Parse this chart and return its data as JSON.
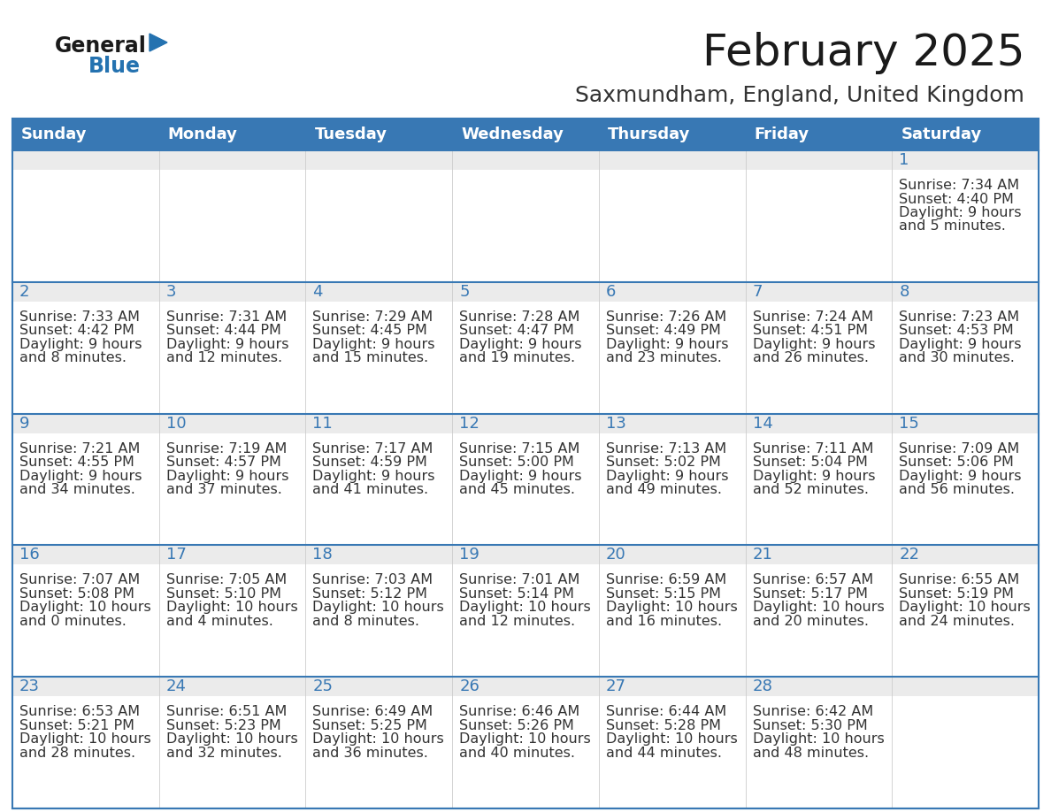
{
  "title": "February 2025",
  "subtitle": "Saxmundham, England, United Kingdom",
  "header_bg": "#3878b4",
  "header_text_color": "#ffffff",
  "cell_bg": "#ffffff",
  "row_top_bg": "#eeeeee",
  "border_color": "#3878b4",
  "sep_color": "#3878b4",
  "days_of_week": [
    "Sunday",
    "Monday",
    "Tuesday",
    "Wednesday",
    "Thursday",
    "Friday",
    "Saturday"
  ],
  "title_color": "#1a1a1a",
  "subtitle_color": "#333333",
  "day_num_color": "#3878b4",
  "text_color": "#333333",
  "logo_general_color": "#1a1a1a",
  "logo_blue_color": "#2472b0",
  "calendar_data": [
    [
      null,
      null,
      null,
      null,
      null,
      null,
      {
        "day": 1,
        "sunrise": "7:34 AM",
        "sunset": "4:40 PM",
        "daylight": "9 hours and 5 minutes."
      }
    ],
    [
      {
        "day": 2,
        "sunrise": "7:33 AM",
        "sunset": "4:42 PM",
        "daylight": "9 hours and 8 minutes."
      },
      {
        "day": 3,
        "sunrise": "7:31 AM",
        "sunset": "4:44 PM",
        "daylight": "9 hours and 12 minutes."
      },
      {
        "day": 4,
        "sunrise": "7:29 AM",
        "sunset": "4:45 PM",
        "daylight": "9 hours and 15 minutes."
      },
      {
        "day": 5,
        "sunrise": "7:28 AM",
        "sunset": "4:47 PM",
        "daylight": "9 hours and 19 minutes."
      },
      {
        "day": 6,
        "sunrise": "7:26 AM",
        "sunset": "4:49 PM",
        "daylight": "9 hours and 23 minutes."
      },
      {
        "day": 7,
        "sunrise": "7:24 AM",
        "sunset": "4:51 PM",
        "daylight": "9 hours and 26 minutes."
      },
      {
        "day": 8,
        "sunrise": "7:23 AM",
        "sunset": "4:53 PM",
        "daylight": "9 hours and 30 minutes."
      }
    ],
    [
      {
        "day": 9,
        "sunrise": "7:21 AM",
        "sunset": "4:55 PM",
        "daylight": "9 hours and 34 minutes."
      },
      {
        "day": 10,
        "sunrise": "7:19 AM",
        "sunset": "4:57 PM",
        "daylight": "9 hours and 37 minutes."
      },
      {
        "day": 11,
        "sunrise": "7:17 AM",
        "sunset": "4:59 PM",
        "daylight": "9 hours and 41 minutes."
      },
      {
        "day": 12,
        "sunrise": "7:15 AM",
        "sunset": "5:00 PM",
        "daylight": "9 hours and 45 minutes."
      },
      {
        "day": 13,
        "sunrise": "7:13 AM",
        "sunset": "5:02 PM",
        "daylight": "9 hours and 49 minutes."
      },
      {
        "day": 14,
        "sunrise": "7:11 AM",
        "sunset": "5:04 PM",
        "daylight": "9 hours and 52 minutes."
      },
      {
        "day": 15,
        "sunrise": "7:09 AM",
        "sunset": "5:06 PM",
        "daylight": "9 hours and 56 minutes."
      }
    ],
    [
      {
        "day": 16,
        "sunrise": "7:07 AM",
        "sunset": "5:08 PM",
        "daylight": "10 hours and 0 minutes."
      },
      {
        "day": 17,
        "sunrise": "7:05 AM",
        "sunset": "5:10 PM",
        "daylight": "10 hours and 4 minutes."
      },
      {
        "day": 18,
        "sunrise": "7:03 AM",
        "sunset": "5:12 PM",
        "daylight": "10 hours and 8 minutes."
      },
      {
        "day": 19,
        "sunrise": "7:01 AM",
        "sunset": "5:14 PM",
        "daylight": "10 hours and 12 minutes."
      },
      {
        "day": 20,
        "sunrise": "6:59 AM",
        "sunset": "5:15 PM",
        "daylight": "10 hours and 16 minutes."
      },
      {
        "day": 21,
        "sunrise": "6:57 AM",
        "sunset": "5:17 PM",
        "daylight": "10 hours and 20 minutes."
      },
      {
        "day": 22,
        "sunrise": "6:55 AM",
        "sunset": "5:19 PM",
        "daylight": "10 hours and 24 minutes."
      }
    ],
    [
      {
        "day": 23,
        "sunrise": "6:53 AM",
        "sunset": "5:21 PM",
        "daylight": "10 hours and 28 minutes."
      },
      {
        "day": 24,
        "sunrise": "6:51 AM",
        "sunset": "5:23 PM",
        "daylight": "10 hours and 32 minutes."
      },
      {
        "day": 25,
        "sunrise": "6:49 AM",
        "sunset": "5:25 PM",
        "daylight": "10 hours and 36 minutes."
      },
      {
        "day": 26,
        "sunrise": "6:46 AM",
        "sunset": "5:26 PM",
        "daylight": "10 hours and 40 minutes."
      },
      {
        "day": 27,
        "sunrise": "6:44 AM",
        "sunset": "5:28 PM",
        "daylight": "10 hours and 44 minutes."
      },
      {
        "day": 28,
        "sunrise": "6:42 AM",
        "sunset": "5:30 PM",
        "daylight": "10 hours and 48 minutes."
      },
      null
    ]
  ]
}
